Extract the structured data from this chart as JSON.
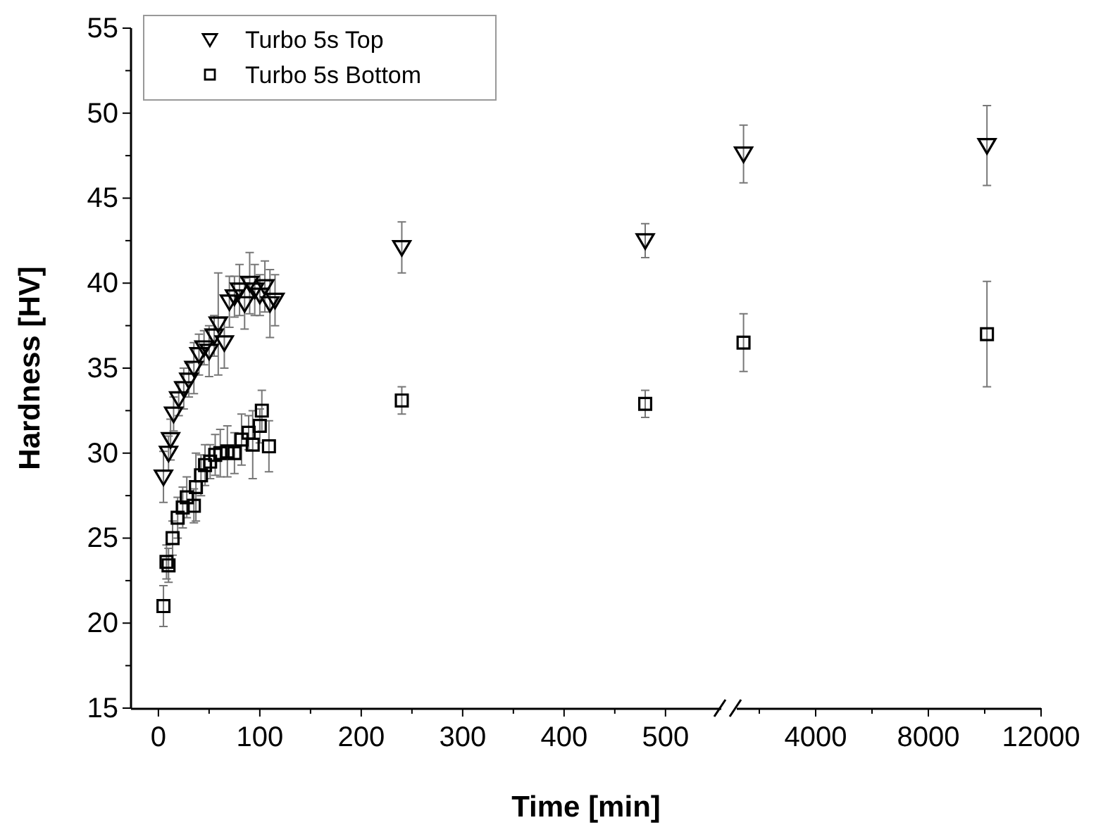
{
  "chart_data": [
    {
      "type": "scatter",
      "xlabel": "Time [min]",
      "ylabel": "Hardness [HV]",
      "legend": "top left",
      "grid": false,
      "xlim": [
        -27,
        555
      ],
      "xticks": [
        0,
        {
          "value": 50,
          "label": null
        },
        100,
        {
          "value": 150,
          "label": null
        },
        200,
        {
          "value": 250,
          "label": null
        },
        300,
        {
          "value": 350,
          "label": null
        },
        400,
        {
          "value": 450,
          "label": null
        },
        500
      ],
      "ylim": [
        15,
        55
      ],
      "yticks": [
        15,
        {
          "value": 17.5,
          "label": null
        },
        20,
        {
          "value": 22.5,
          "label": null
        },
        25,
        {
          "value": 27.5,
          "label": null
        },
        30,
        {
          "value": 32.5,
          "label": null
        },
        35,
        {
          "value": 37.5,
          "label": null
        },
        40,
        {
          "value": 42.5,
          "label": null
        },
        45,
        {
          "value": 47.5,
          "label": null
        },
        50,
        {
          "value": 52.5,
          "label": null
        },
        55
      ],
      "series": [
        {
          "name": "Turbo 5s Top",
          "color": "#000000",
          "marker": "triangle",
          "x": [
            5,
            10,
            12,
            15,
            20,
            25,
            30,
            35,
            40,
            45,
            50,
            55,
            59,
            65,
            70,
            75,
            80,
            85,
            90,
            95,
            100,
            105,
            110,
            115,
            240,
            480
          ],
          "values": [
            28.6,
            30.0,
            30.8,
            32.3,
            33.2,
            33.8,
            34.3,
            35.0,
            35.8,
            36.2,
            36.0,
            36.9,
            37.6,
            36.5,
            38.9,
            39.2,
            39.6,
            38.8,
            40.0,
            39.6,
            39.3,
            39.8,
            38.8,
            39.0,
            42.1,
            42.5
          ],
          "errors": [
            1.5,
            1.0,
            1.2,
            1.0,
            1.0,
            1.2,
            1.0,
            1.5,
            1.2,
            1.0,
            1.5,
            1.2,
            3.0,
            1.5,
            1.5,
            1.2,
            1.5,
            1.5,
            1.8,
            1.5,
            1.2,
            1.5,
            2.0,
            1.5,
            1.5,
            1.0
          ]
        },
        {
          "name": "Turbo 5s Bottom",
          "color": "#000000",
          "marker": "square",
          "x": [
            5,
            8,
            10,
            14,
            19,
            24,
            28,
            35,
            37,
            42,
            46,
            51,
            56,
            61,
            68,
            75,
            82,
            89,
            93,
            100,
            102,
            109,
            240,
            480
          ],
          "values": [
            21.0,
            23.6,
            23.4,
            25.0,
            26.2,
            26.8,
            27.4,
            26.9,
            28.0,
            28.7,
            29.3,
            29.5,
            29.9,
            30.0,
            30.1,
            30.0,
            30.8,
            31.2,
            30.5,
            31.6,
            32.5,
            30.4,
            33.1,
            32.9
          ],
          "errors": [
            1.2,
            1.0,
            1.0,
            1.0,
            1.2,
            1.2,
            1.2,
            1.0,
            2.0,
            1.2,
            1.2,
            1.0,
            1.2,
            1.4,
            1.5,
            1.2,
            1.5,
            1.0,
            2.0,
            1.0,
            1.2,
            1.5,
            0.8,
            0.8
          ]
        }
      ]
    },
    {
      "type": "scatter",
      "tick_labels": "x",
      "grid": false,
      "xlim": [
        1200,
        12000
      ],
      "xticks": [
        {
          "value": 2000,
          "label": null
        },
        4000,
        {
          "value": 6000,
          "label": null
        },
        8000,
        {
          "value": 10000,
          "label": null
        },
        12000
      ],
      "ylim": [
        15,
        55
      ],
      "series": [
        {
          "color": "#000000",
          "marker": "triangle",
          "x": [
            1440,
            10080
          ],
          "values": [
            47.6,
            48.1
          ],
          "errors": [
            1.7,
            2.35
          ]
        },
        {
          "color": "#000000",
          "marker": "square",
          "x": [
            1440,
            10080
          ],
          "values": [
            36.5,
            37.0
          ],
          "errors": [
            1.7,
            3.1
          ]
        }
      ]
    }
  ]
}
